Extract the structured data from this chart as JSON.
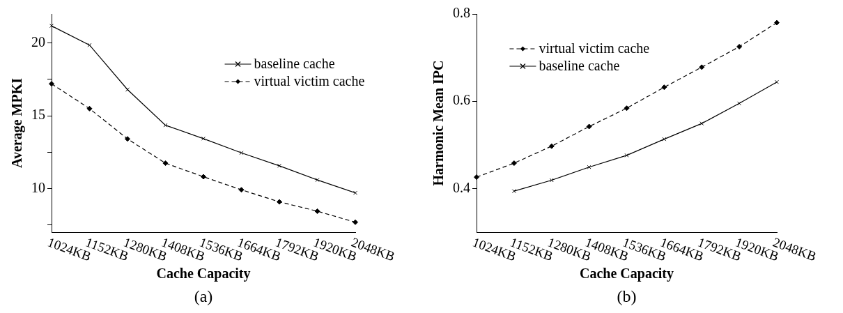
{
  "chart_data": [
    {
      "type": "line",
      "xlabel": "Cache Capacity",
      "ylabel": "Average MPKI",
      "categories": [
        "1024KB",
        "1152KB",
        "1280KB",
        "1408KB",
        "1536KB",
        "1664KB",
        "1792KB",
        "1920KB",
        "2048KB"
      ],
      "ylim": [
        7,
        22
      ],
      "yticks": [
        {
          "value": 7.5,
          "label": null
        },
        10,
        {
          "value": 12.5,
          "label": null
        },
        15,
        {
          "value": 17.5,
          "label": null
        },
        20
      ],
      "grid": false,
      "legend": "top right",
      "annotations": [
        "(a)"
      ],
      "series": [
        {
          "name": "baseline cache",
          "color": "#000000",
          "marker": "cross",
          "line_style": "solid",
          "values": [
            21.18,
            19.86,
            16.8,
            14.35,
            13.43,
            12.45,
            11.56,
            10.59,
            9.7
          ]
        },
        {
          "name": "virtual victim cache",
          "color": "#000000",
          "marker": "diamond",
          "line_style": "dashed",
          "values": [
            17.2,
            15.49,
            13.41,
            11.74,
            10.81,
            9.91,
            9.08,
            8.44,
            7.68
          ]
        }
      ]
    },
    {
      "type": "line",
      "xlabel": "Cache Capacity",
      "ylabel": "Harmonic Mean IPC",
      "categories": [
        "1024KB",
        "1152KB",
        "1280KB",
        "1408KB",
        "1536KB",
        "1664KB",
        "1792KB",
        "1920KB",
        "2048KB"
      ],
      "ylim": [
        0.3,
        0.8
      ],
      "yticks": [
        {
          "value": 0.4,
          "label": "0.4"
        },
        {
          "value": 0.6,
          "label": "0.6"
        },
        {
          "value": 0.8,
          "label": "0.8"
        }
      ],
      "grid": false,
      "legend": "top left",
      "annotations": [
        "(b)"
      ],
      "series": [
        {
          "name": "virtual victim cache",
          "color": "#000000",
          "marker": "diamond",
          "line_style": "dashed",
          "values": [
            0.426,
            0.458,
            0.497,
            0.542,
            0.584,
            0.632,
            0.678,
            0.725,
            0.78
          ]
        },
        {
          "name": "baseline cache",
          "color": "#000000",
          "marker": "cross",
          "line_style": "solid",
          "values": [
            null,
            0.394,
            0.419,
            0.449,
            0.476,
            0.513,
            0.549,
            0.595,
            0.644
          ]
        }
      ]
    }
  ]
}
